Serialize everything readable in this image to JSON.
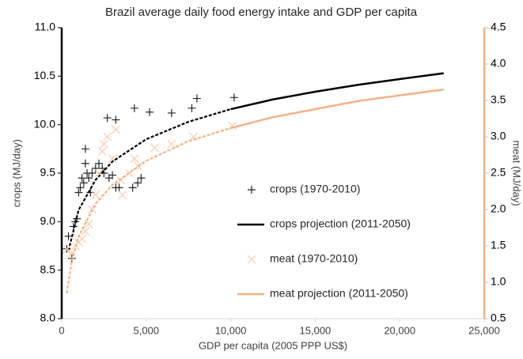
{
  "chart_data": {
    "type": "scatter",
    "title": "Brazil average daily food energy intake and GDP per capita",
    "x_label": "GDP per capita (2005 PPP US$)",
    "y_label": "crops (MJ/day)",
    "y2_label": "meat (MJ/day)",
    "xlim": [
      0,
      25000
    ],
    "xticks": [
      0,
      {
        "value": 5000,
        "label": "5,000"
      },
      {
        "value": 10000,
        "label": "10,000"
      },
      {
        "value": 15000,
        "label": "15,000"
      },
      {
        "value": 20000,
        "label": "20,000"
      },
      {
        "value": 25000,
        "label": "25,000"
      }
    ],
    "ylim": [
      8.0,
      11.0
    ],
    "yticks": [
      {
        "value": 8.0,
        "label": "8.0"
      },
      8.5,
      {
        "value": 9.0,
        "label": "9.0"
      },
      9.5,
      {
        "value": 10.0,
        "label": "10.0"
      },
      10.5,
      {
        "value": 11.0,
        "label": "11.0"
      }
    ],
    "y2lim": [
      0.5,
      4.5
    ],
    "y2ticks": [
      0.5,
      {
        "value": 1.0,
        "label": "1.0"
      },
      1.5,
      {
        "value": 2.0,
        "label": "2.0"
      },
      2.5,
      {
        "value": 3.0,
        "label": "3.0"
      },
      3.5,
      {
        "value": 4.0,
        "label": "4.0"
      },
      4.5
    ],
    "grid": false,
    "legend": "right",
    "series": [
      {
        "name": "crops (1970-2010)",
        "kind": "scatter",
        "marker": "plus",
        "color": "#262626",
        "x": [
          300,
          400,
          600,
          700,
          800,
          900,
          1000,
          1100,
          1200,
          1300,
          1400,
          1400,
          1500,
          1600,
          1700,
          1800,
          2000,
          2200,
          2400,
          2500,
          2700,
          2800,
          3000,
          3200,
          3200,
          3400,
          4200,
          4300,
          4500,
          4700,
          5200,
          6500,
          7700,
          8000,
          10200
        ],
        "values": [
          8.72,
          8.85,
          8.62,
          8.95,
          9.0,
          9.03,
          9.3,
          9.35,
          9.45,
          9.4,
          9.6,
          9.75,
          9.5,
          9.45,
          9.3,
          9.5,
          9.55,
          9.6,
          9.55,
          9.5,
          10.07,
          9.45,
          9.48,
          10.05,
          9.35,
          9.35,
          9.35,
          10.17,
          9.4,
          9.45,
          10.13,
          10.12,
          10.17,
          10.27,
          10.28
        ]
      },
      {
        "kind": "line",
        "dash": true,
        "color": "#000000",
        "x": [
          400,
          1000,
          2000,
          3000,
          5000,
          7500,
          10000
        ],
        "values": [
          8.7,
          9.12,
          9.43,
          9.62,
          9.85,
          10.03,
          10.16
        ]
      },
      {
        "name": "crops projection (2011-2050)",
        "kind": "line",
        "dash": false,
        "color": "#000000",
        "x": [
          10000,
          12500,
          15000,
          17500,
          20000,
          22600
        ],
        "values": [
          10.16,
          10.26,
          10.34,
          10.41,
          10.47,
          10.53
        ]
      },
      {
        "name": "meat (1970-2010)",
        "kind": "scatter",
        "marker": "cross",
        "color": "#f8cbad",
        "axis": "y2",
        "x": [
          300,
          600,
          800,
          1000,
          1200,
          1400,
          1600,
          1800,
          2000,
          2200,
          2400,
          2500,
          2700,
          3000,
          3200,
          3500,
          3600,
          4000,
          4300,
          4500,
          5500,
          6500,
          7800,
          10100
        ],
        "values": [
          1.45,
          1.4,
          1.5,
          1.55,
          1.6,
          1.7,
          1.8,
          2.0,
          2.2,
          2.5,
          2.8,
          2.9,
          3.0,
          2.7,
          3.1,
          2.4,
          2.2,
          2.5,
          2.7,
          2.6,
          2.85,
          2.9,
          3.0,
          3.15
        ]
      },
      {
        "kind": "line",
        "dash": true,
        "color": "#f4b183",
        "axis": "y2",
        "x": [
          300,
          600,
          1000,
          2000,
          3000,
          5000,
          7500,
          10000
        ],
        "values": [
          0.85,
          1.3,
          1.63,
          2.08,
          2.34,
          2.67,
          2.94,
          3.12
        ]
      },
      {
        "name": "meat projection (2011-2050)",
        "kind": "line",
        "dash": false,
        "color": "#f4b183",
        "axis": "y2",
        "x": [
          10000,
          12500,
          15000,
          17500,
          20000,
          22600
        ],
        "values": [
          3.12,
          3.27,
          3.38,
          3.49,
          3.57,
          3.65
        ]
      }
    ]
  }
}
